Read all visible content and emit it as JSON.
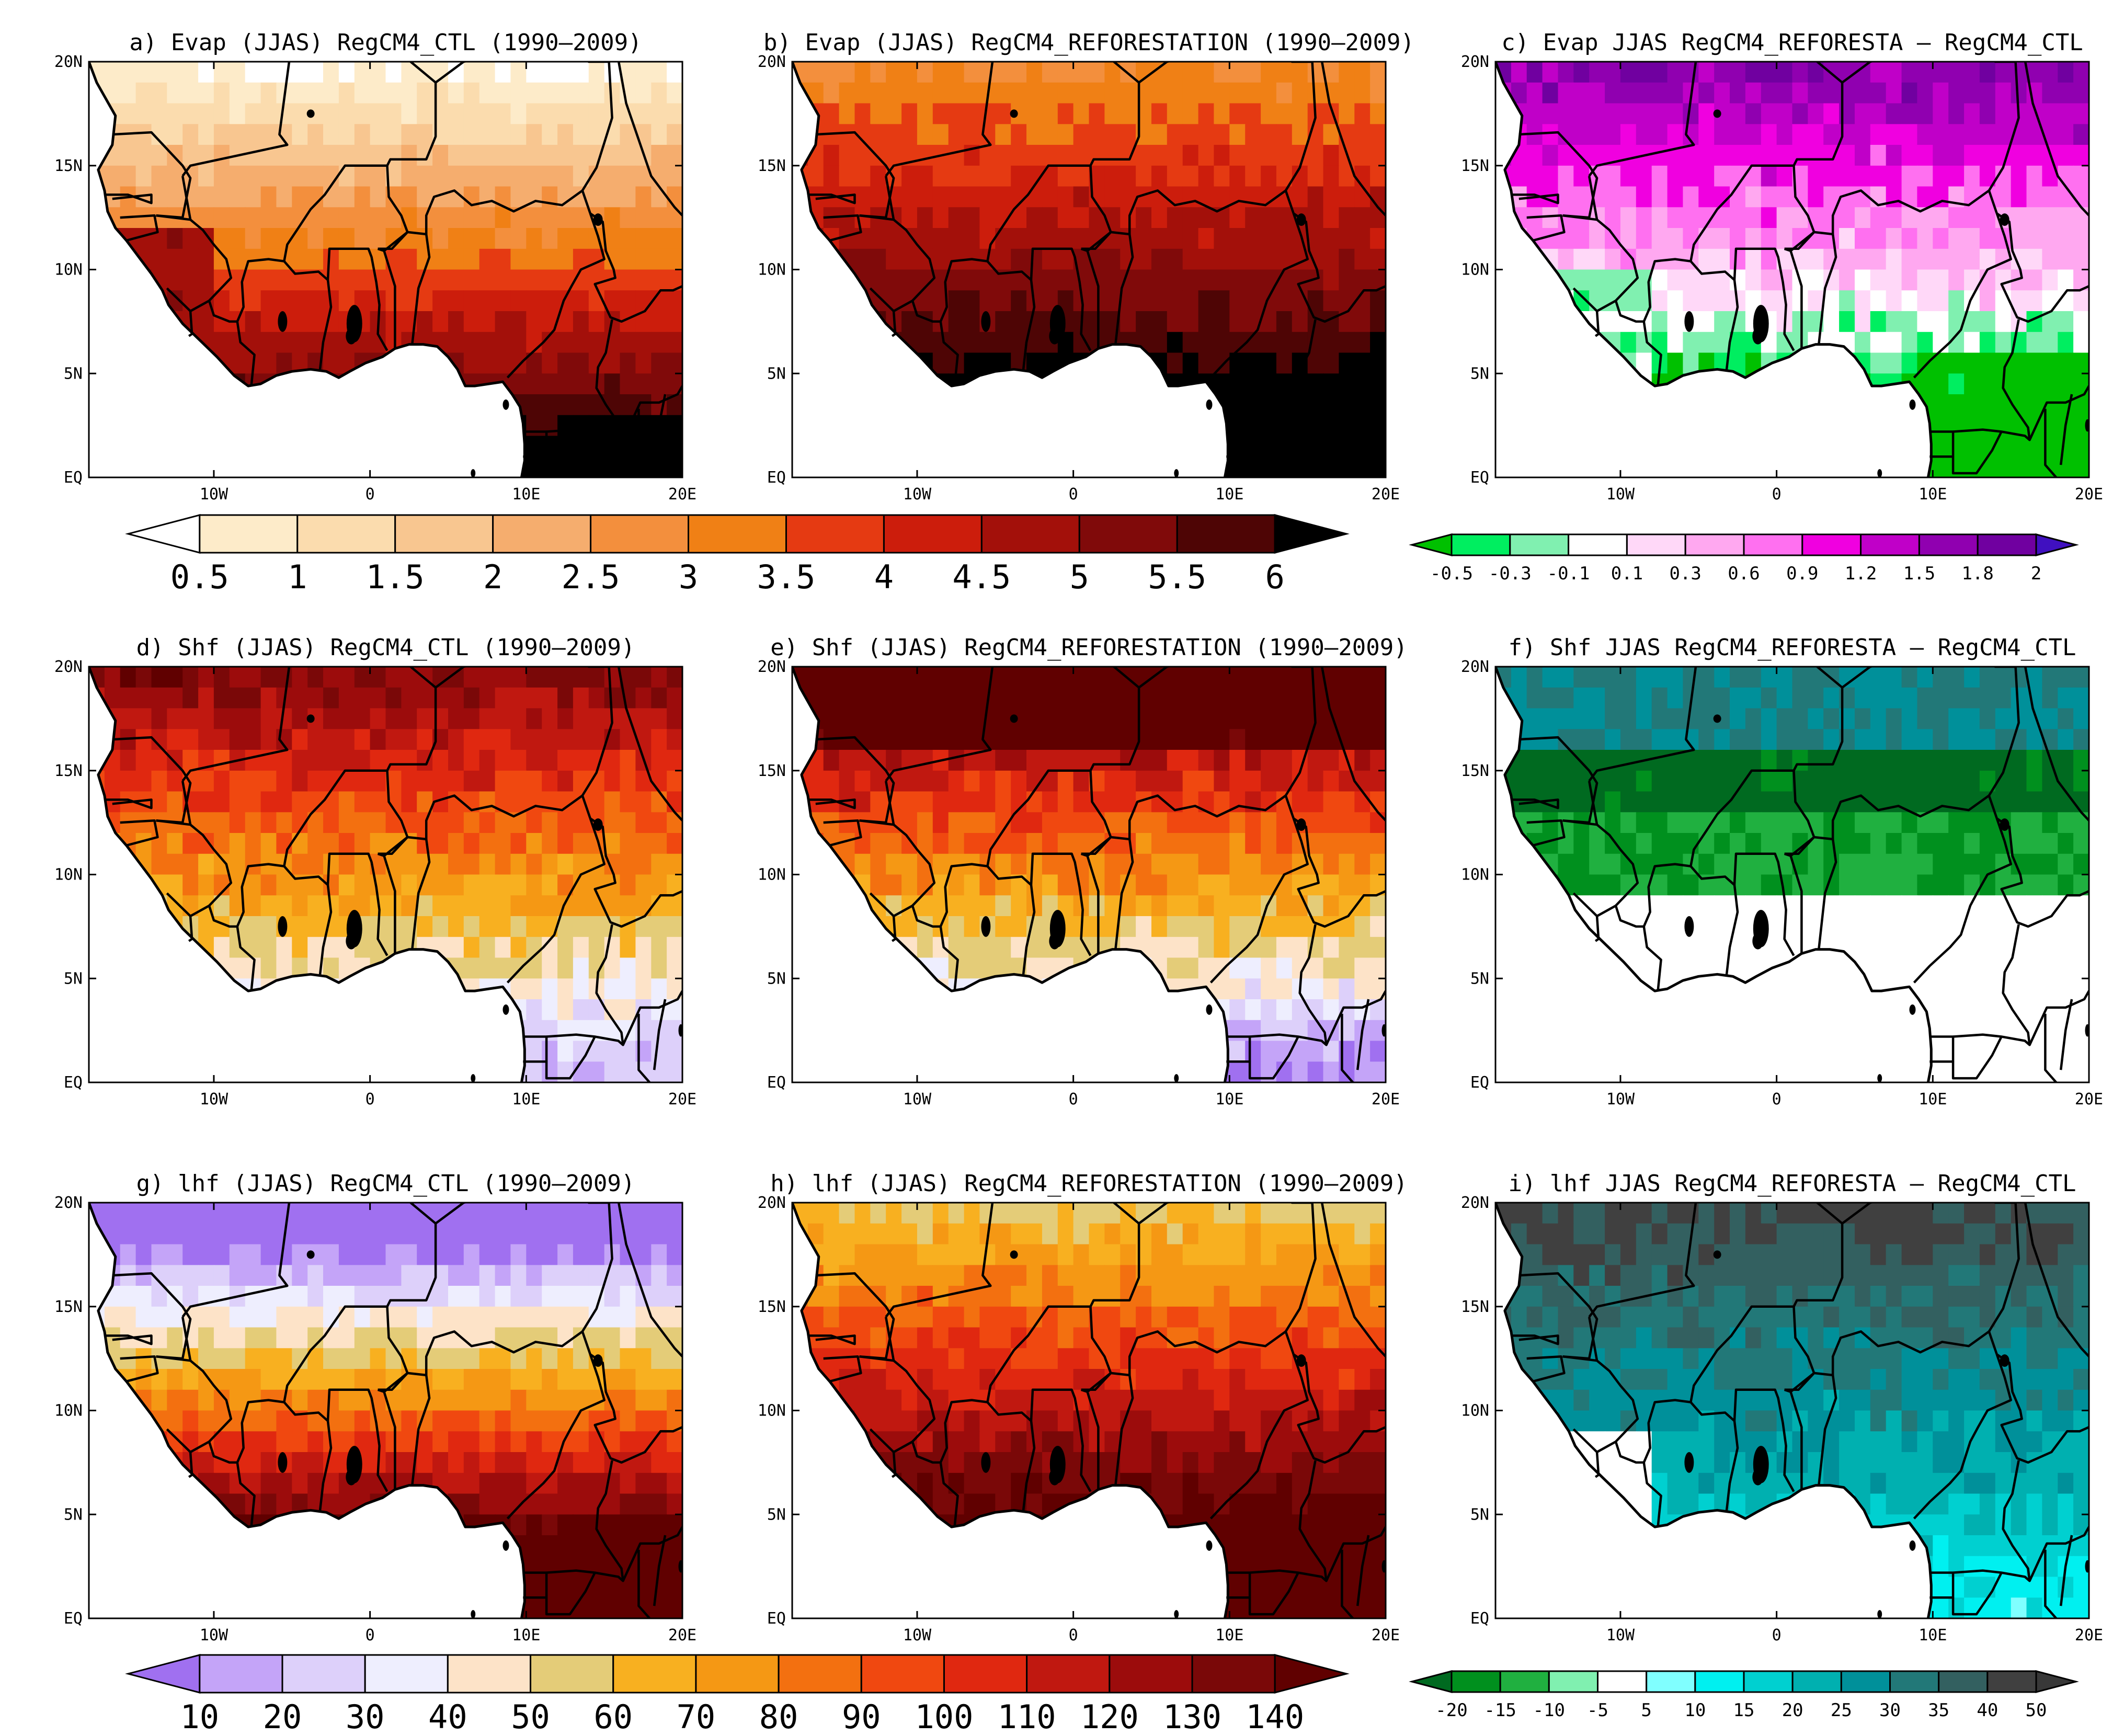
{
  "lat_labels": [
    "20N",
    "15N",
    "10N",
    "5N",
    "EQ"
  ],
  "lon_labels": [
    "10W",
    "0",
    "10E",
    "20E"
  ],
  "panels": [
    {
      "title": "a) Evap (JJAS) RegCM4_CTL (1990–2009)",
      "scheme": "evap"
    },
    {
      "title": "b) Evap (JJAS) RegCM4_REFORESTATION (1990–2009)",
      "scheme": "evap"
    },
    {
      "title": "c) Evap JJAS RegCM4_REFORESTA – RegCM4_CTL",
      "scheme": "evap_diff"
    },
    {
      "title": "d) Shf (JJAS) RegCM4_CTL (1990–2009)",
      "scheme": "flux"
    },
    {
      "title": "e) Shf (JJAS) RegCM4_REFORESTATION (1990–2009)",
      "scheme": "flux"
    },
    {
      "title": "f) Shf JJAS RegCM4_REFORESTA – RegCM4_CTL",
      "scheme": "flux_diff"
    },
    {
      "title": "g) lhf (JJAS) RegCM4_CTL (1990–2009)",
      "scheme": "flux"
    },
    {
      "title": "h) lhf (JJAS) RegCM4_REFORESTATION (1990–2009)",
      "scheme": "flux"
    },
    {
      "title": "i) lhf JJAS RegCM4_REFORESTA – RegCM4_CTL",
      "scheme": "flux_diff"
    }
  ],
  "colorbars": {
    "evap": {
      "labels": [
        "0.5",
        "1",
        "1.5",
        "2",
        "2.5",
        "3",
        "3.5",
        "4",
        "4.5",
        "5",
        "5.5",
        "6"
      ],
      "colors": [
        "#ffffff",
        "#fdebc9",
        "#fbdcae",
        "#f8c690",
        "#f5ad6e",
        "#f38f3d",
        "#f08015",
        "#e53a12",
        "#cc1d0c",
        "#a3100a",
        "#800a0a",
        "#4e0505",
        "#000000"
      ]
    },
    "evap_diff": {
      "labels": [
        "-0.5",
        "-0.3",
        "-0.1",
        "0.1",
        "0.3",
        "0.6",
        "0.9",
        "1.2",
        "1.5",
        "1.8",
        "2"
      ],
      "colors": [
        "#00c000",
        "#00ee60",
        "#80f0b0",
        "#ffffff",
        "#ffd8f8",
        "#ffa8f0",
        "#ff70f0",
        "#f000e0",
        "#c000c8",
        "#9000b0",
        "#7000a0",
        "#4010c0"
      ]
    },
    "flux": {
      "labels": [
        "10",
        "20",
        "30",
        "40",
        "50",
        "60",
        "70",
        "80",
        "90",
        "100",
        "110",
        "120",
        "130",
        "140"
      ],
      "colors": [
        "#a070f0",
        "#c4a4f8",
        "#ddd0fa",
        "#eeeefe",
        "#fde3c8",
        "#e4cc78",
        "#f8b020",
        "#f59814",
        "#f37010",
        "#f04810",
        "#e02810",
        "#c01810",
        "#9c0c0c",
        "#7a0808",
        "#600000"
      ]
    },
    "flux_diff": {
      "labels": [
        "-20",
        "-15",
        "-10",
        "-5",
        "5",
        "10",
        "15",
        "20",
        "25",
        "30",
        "35",
        "40",
        "50"
      ],
      "colors": [
        "#006a20",
        "#00901e",
        "#20b040",
        "#80f0b0",
        "#ffffff",
        "#80ffff",
        "#00f0f0",
        "#00d0d0",
        "#00b0b0",
        "#00909a",
        "#227878",
        "#336060",
        "#404040",
        "#383838"
      ]
    }
  }
}
